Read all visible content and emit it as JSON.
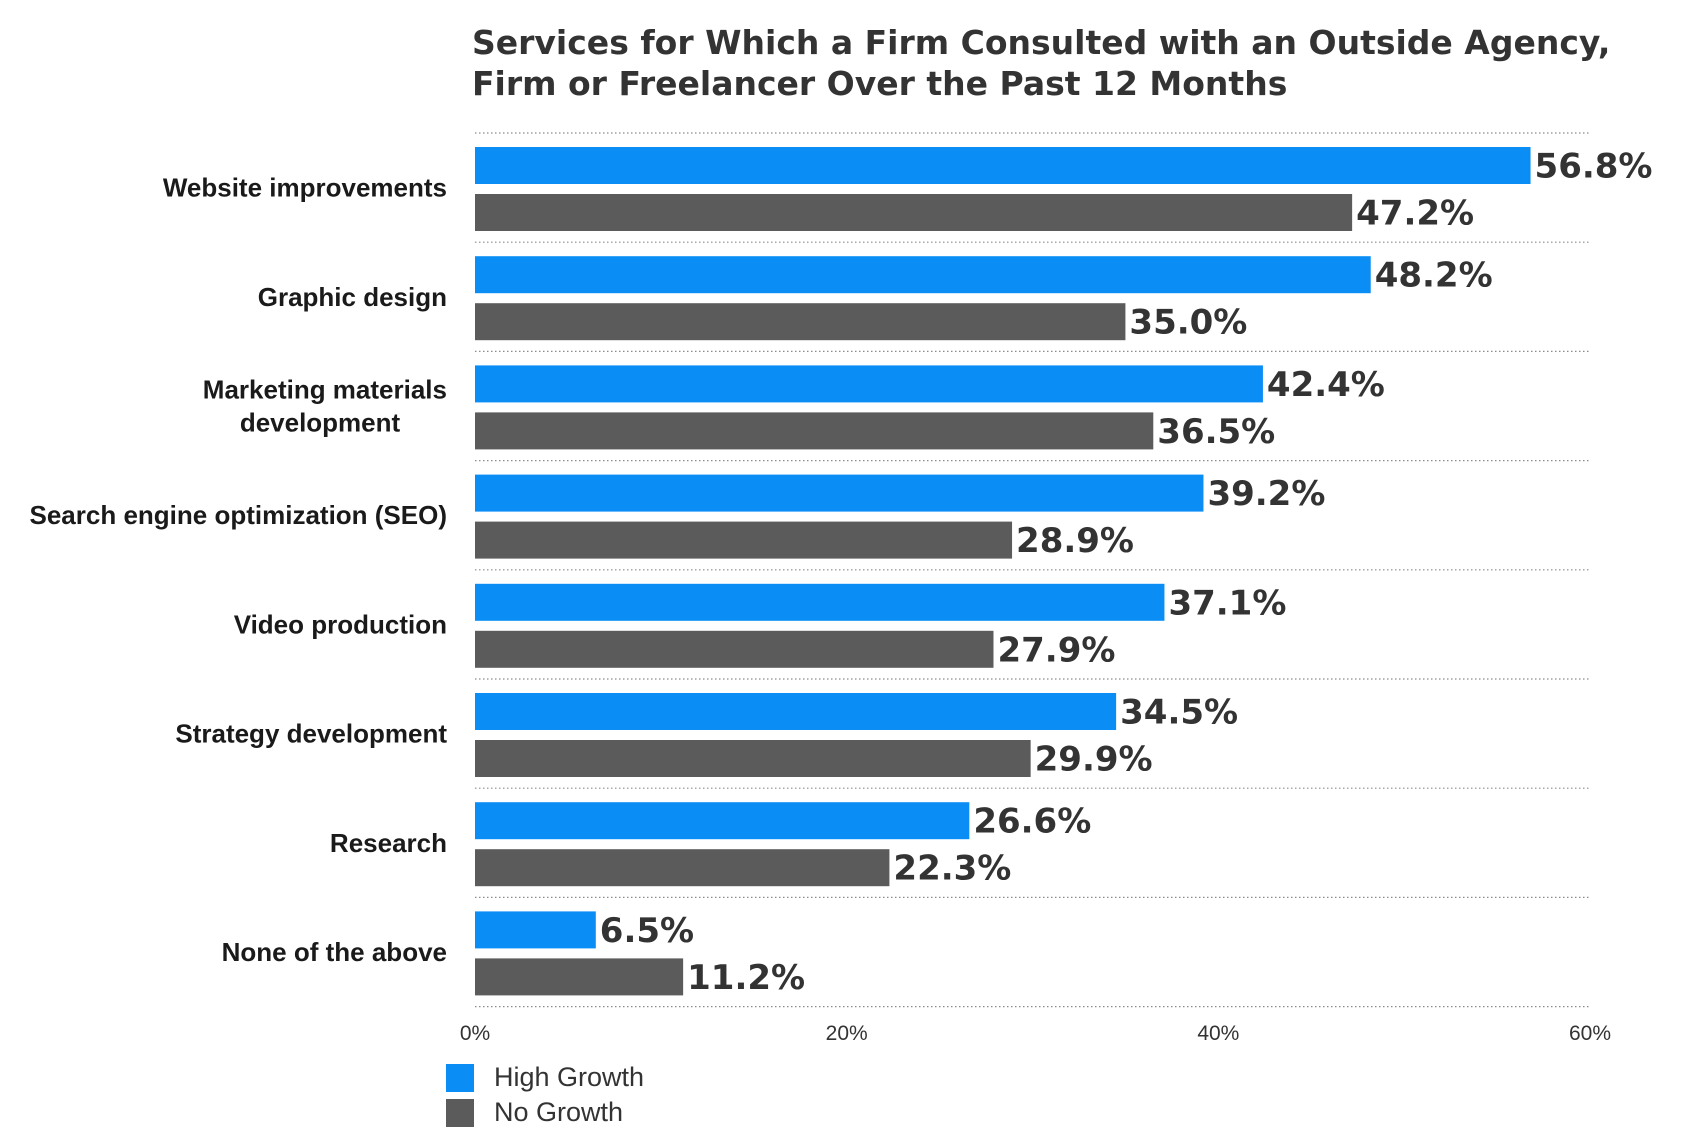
{
  "chart_data": {
    "type": "bar",
    "orientation": "horizontal",
    "title": "Services for Which a Firm Consulted with an Outside Agency, Firm or Freelancer Over the Past 12 Months",
    "categories": [
      [
        "Website improvements"
      ],
      [
        "Graphic design"
      ],
      [
        "Marketing materials",
        "development"
      ],
      [
        "Search engine optimization (SEO)"
      ],
      [
        "Video production"
      ],
      [
        "Strategy development"
      ],
      [
        "Research"
      ],
      [
        "None of the above"
      ]
    ],
    "series": [
      {
        "name": "High Growth",
        "color": "#0a8df5",
        "values": [
          56.8,
          48.2,
          42.4,
          39.2,
          37.1,
          34.5,
          26.6,
          6.5
        ],
        "labels": [
          "56.8%",
          "48.2%",
          "42.4%",
          "39.2%",
          "37.1%",
          "34.5%",
          "26.6%",
          "6.5%"
        ]
      },
      {
        "name": "No Growth",
        "color": "#5b5b5b",
        "values": [
          47.2,
          35.0,
          36.5,
          28.9,
          27.9,
          29.9,
          22.3,
          11.2
        ],
        "labels": [
          "47.2%",
          "35.0%",
          "36.5%",
          "28.9%",
          "27.9%",
          "29.9%",
          "22.3%",
          "11.2%"
        ]
      }
    ],
    "xlim": [
      0,
      60
    ],
    "xticks": [
      0,
      20,
      40,
      60
    ],
    "xtick_labels": [
      "0%",
      "20%",
      "40%",
      "60%"
    ],
    "grid": "dotted horizontal separators",
    "legend_position": "bottom-left"
  }
}
